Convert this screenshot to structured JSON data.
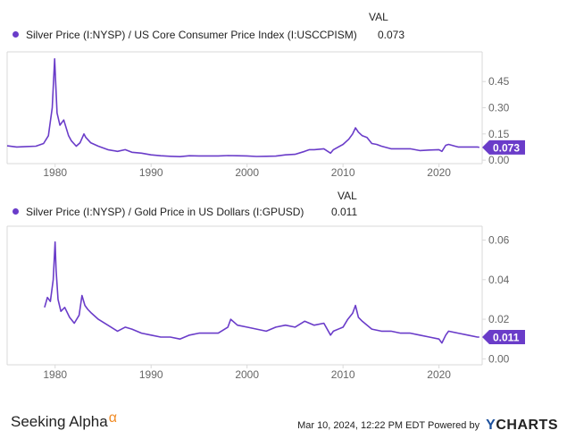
{
  "header": {
    "val_label": "VAL"
  },
  "footer": {
    "brand": "Seeking Alpha",
    "brand_symbol": "α",
    "timestamp": "Mar 10, 2024, 12:22 PM EDT",
    "powered_by": "Powered by",
    "ycharts_y": "Y",
    "ycharts_rest": "CHARTS"
  },
  "colors": {
    "series": "#6a3cc9",
    "grid": "#d9d9d9",
    "axis_text": "#666666"
  },
  "chart_data": [
    {
      "type": "line",
      "legend": "Silver Price (I:NYSP) / US Core Consumer Price Index (I:USCCPISM)",
      "val_header": "VAL",
      "current_value": "0.073",
      "current_label": "0.073",
      "xlim": [
        1975,
        2024.5
      ],
      "ylim": [
        -0.02,
        0.62
      ],
      "x_ticks": [
        1980,
        1990,
        2000,
        2010,
        2020
      ],
      "x_tick_labels": [
        "1980",
        "1990",
        "2000",
        "2010",
        "2020"
      ],
      "y_ticks": [
        0.0,
        0.15,
        0.3,
        0.45
      ],
      "y_tick_labels": [
        "0.00",
        "0.15",
        "0.30",
        "0.45"
      ],
      "x": [
        1975,
        1976,
        1977,
        1978,
        1978.8,
        1979.3,
        1979.7,
        1979.95,
        1980.05,
        1980.2,
        1980.5,
        1980.9,
        1981.4,
        1981.7,
        1982.2,
        1982.6,
        1983.0,
        1983.2,
        1983.7,
        1984.5,
        1985.5,
        1986.5,
        1987.3,
        1988,
        1989,
        1990,
        1991,
        1992,
        1993,
        1994,
        1995,
        1996,
        1997,
        1998,
        1999,
        2000,
        2001,
        2002,
        2003,
        2004,
        2005,
        2006,
        2006.5,
        2007,
        2008,
        2008.7,
        2009,
        2010,
        2010.6,
        2011.0,
        2011.3,
        2011.6,
        2012,
        2012.5,
        2013,
        2013.5,
        2014,
        2015,
        2016,
        2017,
        2018,
        2019,
        2020,
        2020.3,
        2020.7,
        2021,
        2022,
        2023,
        2024,
        2024.2
      ],
      "y": [
        0.082,
        0.075,
        0.078,
        0.08,
        0.095,
        0.14,
        0.3,
        0.58,
        0.45,
        0.27,
        0.2,
        0.23,
        0.14,
        0.11,
        0.08,
        0.1,
        0.15,
        0.13,
        0.1,
        0.08,
        0.06,
        0.05,
        0.06,
        0.045,
        0.04,
        0.03,
        0.025,
        0.022,
        0.02,
        0.025,
        0.024,
        0.024,
        0.024,
        0.026,
        0.025,
        0.024,
        0.021,
        0.022,
        0.023,
        0.03,
        0.033,
        0.05,
        0.06,
        0.06,
        0.065,
        0.04,
        0.06,
        0.09,
        0.12,
        0.15,
        0.185,
        0.16,
        0.14,
        0.13,
        0.095,
        0.09,
        0.08,
        0.065,
        0.065,
        0.065,
        0.055,
        0.058,
        0.06,
        0.05,
        0.085,
        0.09,
        0.075,
        0.075,
        0.075,
        0.073
      ]
    },
    {
      "type": "line",
      "legend": "Silver Price (I:NYSP) / Gold Price in US Dollars (I:GPUSD)",
      "val_header": "VAL",
      "current_value": "0.011",
      "current_label": "0.011",
      "xlim": [
        1975,
        2024.5
      ],
      "ylim": [
        -0.003,
        0.067
      ],
      "x_ticks": [
        1980,
        1990,
        2000,
        2010,
        2020
      ],
      "x_tick_labels": [
        "1980",
        "1990",
        "2000",
        "2010",
        "2020"
      ],
      "y_ticks": [
        0.0,
        0.02,
        0.04,
        0.06
      ],
      "y_tick_labels": [
        "0.00",
        "0.02",
        "0.04",
        "0.06"
      ],
      "x": [
        1978.9,
        1979.2,
        1979.5,
        1979.8,
        1980.0,
        1980.1,
        1980.3,
        1980.6,
        1981.0,
        1981.5,
        1982.0,
        1982.5,
        1982.8,
        1983.1,
        1983.4,
        1983.8,
        1984.5,
        1985.5,
        1986.5,
        1987.3,
        1988,
        1989,
        1990,
        1991,
        1992,
        1993,
        1994,
        1995,
        1996,
        1997,
        1998,
        1998.3,
        1999,
        2000,
        2001,
        2002,
        2003,
        2004,
        2005,
        2006,
        2007,
        2008,
        2008.7,
        2009,
        2010,
        2010.5,
        2011.0,
        2011.3,
        2011.6,
        2012,
        2013,
        2014,
        2015,
        2016,
        2017,
        2018,
        2019,
        2020,
        2020.3,
        2020.7,
        2021,
        2022,
        2023,
        2024,
        2024.2
      ],
      "y": [
        0.026,
        0.031,
        0.029,
        0.04,
        0.059,
        0.045,
        0.03,
        0.024,
        0.026,
        0.021,
        0.018,
        0.022,
        0.032,
        0.027,
        0.025,
        0.023,
        0.02,
        0.017,
        0.014,
        0.016,
        0.015,
        0.013,
        0.012,
        0.011,
        0.011,
        0.01,
        0.012,
        0.013,
        0.013,
        0.013,
        0.016,
        0.02,
        0.017,
        0.016,
        0.015,
        0.014,
        0.016,
        0.017,
        0.016,
        0.019,
        0.017,
        0.018,
        0.012,
        0.014,
        0.016,
        0.02,
        0.023,
        0.027,
        0.021,
        0.019,
        0.015,
        0.014,
        0.014,
        0.013,
        0.013,
        0.012,
        0.011,
        0.01,
        0.008,
        0.012,
        0.014,
        0.013,
        0.012,
        0.011,
        0.011
      ]
    }
  ]
}
